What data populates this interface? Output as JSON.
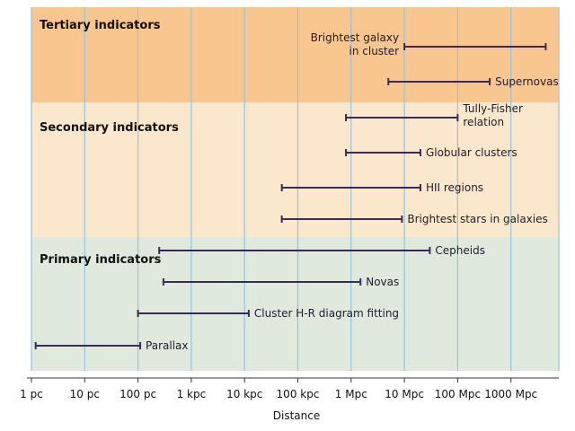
{
  "chart_data": {
    "type": "range",
    "xlabel": "Distance",
    "x_scale": "log",
    "x_ticks": [
      "1 pc",
      "10 pc",
      "100 pc",
      "1 kpc",
      "10 kpc",
      "100 kpc",
      "1 Mpc",
      "10 Mpc",
      "100 Mpc",
      "1000 Mpc"
    ],
    "x_units": "pc",
    "xlim": [
      1,
      20000000000
    ],
    "grid": true,
    "bands": [
      {
        "title": "Tertiary indicators",
        "color": "#f9c690",
        "ranges": [
          {
            "label": "Brightest galaxy in cluster",
            "lines": [
              "Brightest galaxy",
              "in cluster"
            ],
            "label_side": "left",
            "min": 10000000,
            "max": 4500000000
          },
          {
            "label": "Supernovas",
            "lines": [
              "Supernovas"
            ],
            "label_side": "right",
            "min": 5000000,
            "max": 400000000
          }
        ]
      },
      {
        "title": "Secondary indicators",
        "color": "#fbe7cc",
        "ranges": [
          {
            "label": "Tully-Fisher relation",
            "lines": [
              "Tully-Fisher",
              "relation"
            ],
            "label_side": "right",
            "min": 800000,
            "max": 100000000
          },
          {
            "label": "Globular clusters",
            "lines": [
              "Globular clusters"
            ],
            "label_side": "right",
            "min": 800000,
            "max": 20000000
          },
          {
            "label": "HII regions",
            "lines": [
              "HII regions"
            ],
            "label_side": "right",
            "min": 50000,
            "max": 20000000
          },
          {
            "label": "Brightest stars in galaxies",
            "lines": [
              "Brightest stars in galaxies"
            ],
            "label_side": "right",
            "min": 50000,
            "max": 9000000
          }
        ]
      },
      {
        "title": "Primary indicators",
        "color": "#dfeadc",
        "ranges": [
          {
            "label": "Cepheids",
            "lines": [
              "Cepheids"
            ],
            "label_side": "right",
            "min": 250,
            "max": 30000000
          },
          {
            "label": "Novas",
            "lines": [
              "Novas"
            ],
            "label_side": "right",
            "min": 300,
            "max": 1500000
          },
          {
            "label": "Cluster H-R diagram fitting",
            "lines": [
              "Cluster H-R diagram fitting"
            ],
            "label_side": "right",
            "min": 100,
            "max": 12000
          },
          {
            "label": "Parallax",
            "lines": [
              "Parallax"
            ],
            "label_side": "right",
            "min": 1.2,
            "max": 110
          }
        ]
      }
    ]
  },
  "colors": {
    "grid": "#8ec6e6",
    "bar": "#3a2a5a",
    "axis": "#333333"
  }
}
